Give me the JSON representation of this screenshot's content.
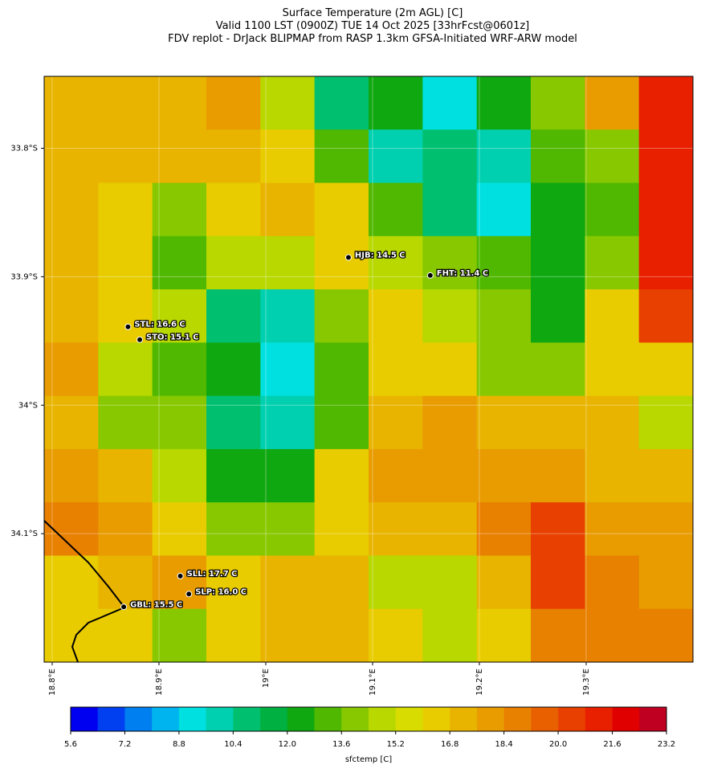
{
  "chart_data": {
    "type": "heatmap",
    "title": [
      "Surface Temperature (2m AGL) [C]",
      "Valid 1100 LST (0900Z) TUE 14 Oct 2025 [33hrFcst@0601z]",
      "FDV replot - DrJack BLIPMAP from RASP 1.3km GFSA-Initiated WRF-ARW model"
    ],
    "xlim": [
      18.7925,
      19.4
    ],
    "ylim": [
      -34.2,
      -33.744
    ],
    "xticks": [
      {
        "value": 18.8,
        "label": "18.8°E"
      },
      {
        "value": 18.9,
        "label": "18.9°E"
      },
      {
        "value": 19.0,
        "label": "19°E"
      },
      {
        "value": 19.1,
        "label": "19.1°E"
      },
      {
        "value": 19.2,
        "label": "19.2°E"
      },
      {
        "value": 19.3,
        "label": "19.3°E"
      }
    ],
    "yticks": [
      {
        "value": -33.8,
        "label": "33.8°S"
      },
      {
        "value": -33.9,
        "label": "33.9°S"
      },
      {
        "value": -34.0,
        "label": "34°S"
      },
      {
        "value": -34.1,
        "label": "34.1°S"
      }
    ],
    "grid": {
      "values": [
        [
          17.5,
          17,
          17.5,
          18,
          15,
          11,
          12,
          9,
          12,
          14,
          18,
          21
        ],
        [
          17.5,
          17,
          17.5,
          17,
          16.5,
          13,
          10,
          11,
          10,
          13,
          14,
          21
        ],
        [
          17,
          16,
          14,
          16,
          17,
          16,
          13,
          11,
          9,
          12,
          13,
          21.5
        ],
        [
          17.5,
          16.5,
          13,
          15,
          15,
          16,
          15,
          14,
          13,
          12,
          14,
          21
        ],
        [
          17,
          16,
          15,
          11,
          10,
          14,
          16,
          15,
          14,
          12,
          16,
          20
        ],
        [
          18,
          15,
          13,
          12,
          9,
          13,
          16,
          16,
          14,
          14,
          16,
          16
        ],
        [
          17,
          14,
          14,
          11,
          10,
          13,
          17,
          18,
          17,
          17,
          17,
          15
        ],
        [
          18,
          17,
          15,
          12,
          12,
          16,
          18,
          18,
          18,
          18,
          17,
          17
        ],
        [
          19,
          18,
          16,
          14,
          14,
          16,
          17,
          17,
          19,
          20,
          18,
          18
        ],
        [
          16,
          17,
          18,
          16,
          17,
          17,
          15,
          15,
          17,
          20,
          19,
          18
        ],
        [
          16,
          16,
          14,
          16,
          17,
          17,
          16,
          15,
          16,
          19,
          19,
          19
        ]
      ]
    },
    "stations": [
      {
        "label": "HJB: 14.5 C",
        "value": 14.5,
        "lon": 19.0774,
        "lat": -33.885
      },
      {
        "label": "FHT: 11.4 C",
        "value": 11.4,
        "lon": 19.154,
        "lat": -33.899
      },
      {
        "label": "STL: 16.6 C",
        "value": 16.6,
        "lon": 18.871,
        "lat": -33.939
      },
      {
        "label": "STO: 15.1 C",
        "value": 15.1,
        "lon": 18.882,
        "lat": -33.949
      },
      {
        "label": "SLL: 17.7 C",
        "value": 17.7,
        "lon": 18.92,
        "lat": -34.133
      },
      {
        "label": "SLP: 16.0 C",
        "value": 16.0,
        "lon": 18.928,
        "lat": -34.147
      },
      {
        "label": "GBL: 15.5 C",
        "value": 15.5,
        "lon": 18.867,
        "lat": -34.157
      }
    ],
    "colorbar": {
      "label": "sfctemp [C]",
      "levels": [
        5.6,
        6.4,
        7.2,
        8.0,
        8.8,
        9.6,
        10.4,
        11.2,
        12.0,
        12.8,
        13.6,
        14.4,
        15.2,
        16.0,
        16.8,
        17.6,
        18.4,
        19.2,
        20.0,
        20.8,
        21.6,
        22.4,
        23.2
      ],
      "colors": [
        "#0000f0",
        "#0040f0",
        "#0080f0",
        "#00b4f0",
        "#00e0e0",
        "#00d0b0",
        "#00c070",
        "#00b040",
        "#10a810",
        "#50b800",
        "#88c800",
        "#b8d800",
        "#d8dc00",
        "#e8cc00",
        "#e8b400",
        "#e89c00",
        "#e88000",
        "#e86000",
        "#e84000",
        "#e82000",
        "#e00000",
        "#c00020"
      ],
      "ticks": [
        5.6,
        7.2,
        8.8,
        10.4,
        {
          "value": 12,
          "label": "12.0"
        },
        13.6,
        15.2,
        16.8,
        18.4,
        {
          "value": 20,
          "label": "20.0"
        },
        21.6,
        23.2
      ]
    }
  }
}
